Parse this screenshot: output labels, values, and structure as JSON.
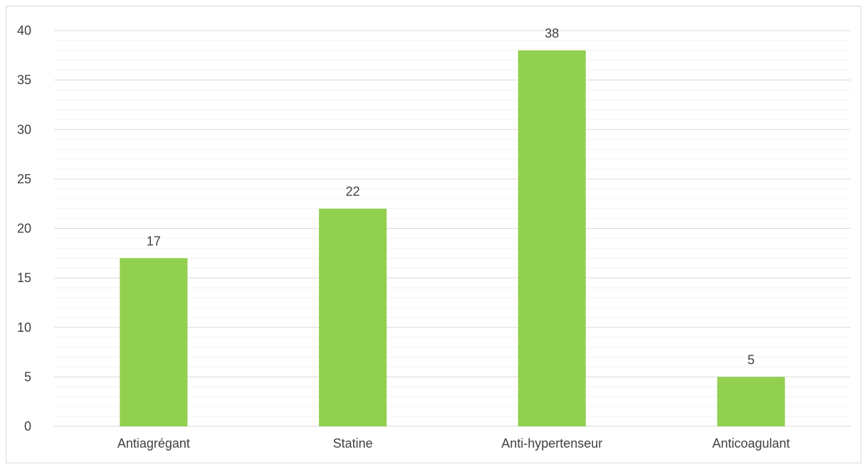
{
  "chart_data": {
    "type": "bar",
    "categories": [
      "Antiagrégant",
      "Statine",
      "Anti-hypertenseur",
      "Anticoagulant"
    ],
    "values": [
      17,
      22,
      38,
      5
    ],
    "data_labels": [
      "17",
      "22",
      "38",
      "5"
    ],
    "title": "",
    "xlabel": "",
    "ylabel": "",
    "ylim": [
      0,
      40
    ],
    "yticks": [
      0,
      5,
      10,
      15,
      20,
      25,
      30,
      35,
      40
    ],
    "ytick_labels": [
      "0",
      "5",
      "10",
      "15",
      "20",
      "25",
      "30",
      "35",
      "40"
    ],
    "grid": true,
    "minor_grid": true,
    "legend": "none",
    "bar_color": "#92d050",
    "gridline_color": "#d9d9d9",
    "minor_gridline_color": "#f2f2f2"
  }
}
